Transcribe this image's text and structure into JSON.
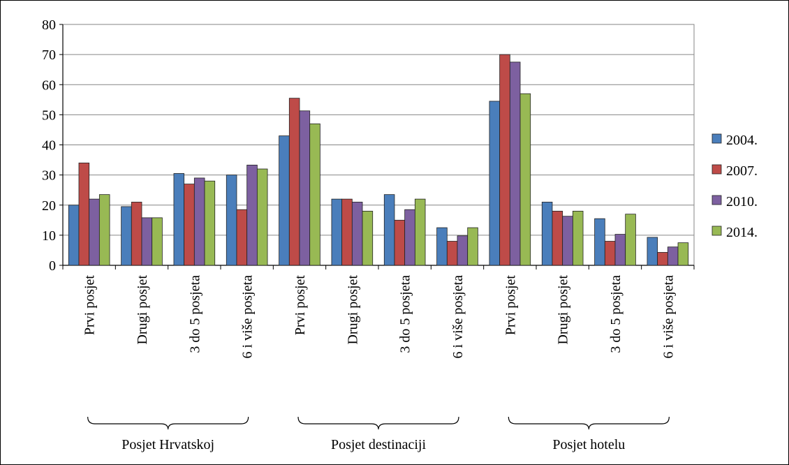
{
  "chart_data": {
    "type": "bar",
    "title": "",
    "xlabel": "",
    "ylabel": "",
    "ylim": [
      0,
      80
    ],
    "yticks": [
      0,
      10,
      20,
      30,
      40,
      50,
      60,
      70,
      80
    ],
    "grid": true,
    "legend_position": "right",
    "groups": [
      {
        "label": "Posjet Hrvatskoj",
        "categories": [
          "Prvi posjet",
          "Drugi posjet",
          "3 do 5 posjeta",
          "6 i više posjeta"
        ]
      },
      {
        "label": "Posjet destinaciji",
        "categories": [
          "Prvi posjet",
          "Drugi posjet",
          "3 do 5 posjeta",
          "6 i više posjeta"
        ]
      },
      {
        "label": "Posjet hotelu",
        "categories": [
          "Prvi posjet",
          "Drugi posjet",
          "3 do 5 posjeta",
          "6 i više posjeta"
        ]
      }
    ],
    "series": [
      {
        "name": "2004.",
        "color": "#4a7ebb",
        "values": [
          20,
          19.5,
          30.5,
          30,
          43,
          22,
          23.5,
          12.5,
          54.5,
          21,
          15.5,
          9.3
        ]
      },
      {
        "name": "2007.",
        "color": "#be4b48",
        "values": [
          34,
          21,
          27,
          18.5,
          55.5,
          22,
          15,
          8,
          70,
          18,
          8,
          4.3
        ]
      },
      {
        "name": "2010.",
        "color": "#7d60a0",
        "values": [
          22,
          15.8,
          29,
          33.3,
          51.3,
          21,
          18.5,
          9.8,
          67.5,
          16.3,
          10.3,
          6.1
        ]
      },
      {
        "name": "2014.",
        "color": "#98b954",
        "values": [
          23.5,
          15.8,
          28,
          32,
          47,
          18,
          22,
          12.5,
          57,
          18,
          17,
          7.5
        ]
      }
    ]
  }
}
